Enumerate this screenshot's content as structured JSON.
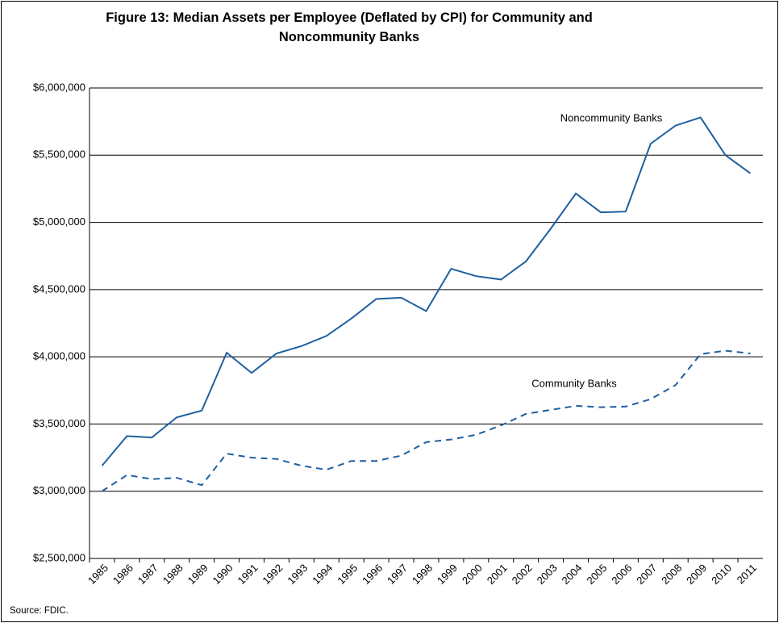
{
  "chart_data": {
    "type": "line",
    "title": "Figure 13: Median Assets per Employee (Deflated by CPI) for Community and Noncommunity Banks",
    "source": "Source: FDIC.",
    "categories": [
      "1985",
      "1986",
      "1987",
      "1988",
      "1989",
      "1990",
      "1991",
      "1992",
      "1993",
      "1994",
      "1995",
      "1996",
      "1997",
      "1998",
      "1999",
      "2000",
      "2001",
      "2002",
      "2003",
      "2004",
      "2005",
      "2006",
      "2007",
      "2008",
      "2009",
      "2010",
      "2011"
    ],
    "series": [
      {
        "name": "Noncommunity Banks",
        "color": "#1f5fa0",
        "line_style": "solid",
        "values": [
          3190000,
          3410000,
          3400000,
          3550000,
          3600000,
          4030000,
          3880000,
          4025000,
          4080000,
          4155000,
          4285000,
          4430000,
          4440000,
          4340000,
          4655000,
          4600000,
          4575000,
          4710000,
          4955000,
          5215000,
          5075000,
          5080000,
          5585000,
          5720000,
          5780000,
          5500000,
          5365000
        ]
      },
      {
        "name": "Community Banks",
        "color": "#1f5fa0",
        "line_style": "dashed",
        "values": [
          3000000,
          3120000,
          3090000,
          3100000,
          3045000,
          3280000,
          3250000,
          3240000,
          3190000,
          3160000,
          3225000,
          3225000,
          3265000,
          3365000,
          3385000,
          3420000,
          3490000,
          3575000,
          3605000,
          3635000,
          3625000,
          3630000,
          3685000,
          3790000,
          4020000,
          4045000,
          4025000
        ]
      }
    ],
    "ylim": [
      2500000,
      6000000
    ],
    "yticks": [
      {
        "value": 2500000,
        "label": "$2,500,000"
      },
      {
        "value": 3000000,
        "label": "$3,000,000"
      },
      {
        "value": 3500000,
        "label": "$3,500,000"
      },
      {
        "value": 4000000,
        "label": "$4,000,000"
      },
      {
        "value": 4500000,
        "label": "$4,500,000"
      },
      {
        "value": 5000000,
        "label": "$5,000,000"
      },
      {
        "value": 5500000,
        "label": "$5,500,000"
      },
      {
        "value": 6000000,
        "label": "$6,000,000"
      }
    ],
    "grid": true
  }
}
